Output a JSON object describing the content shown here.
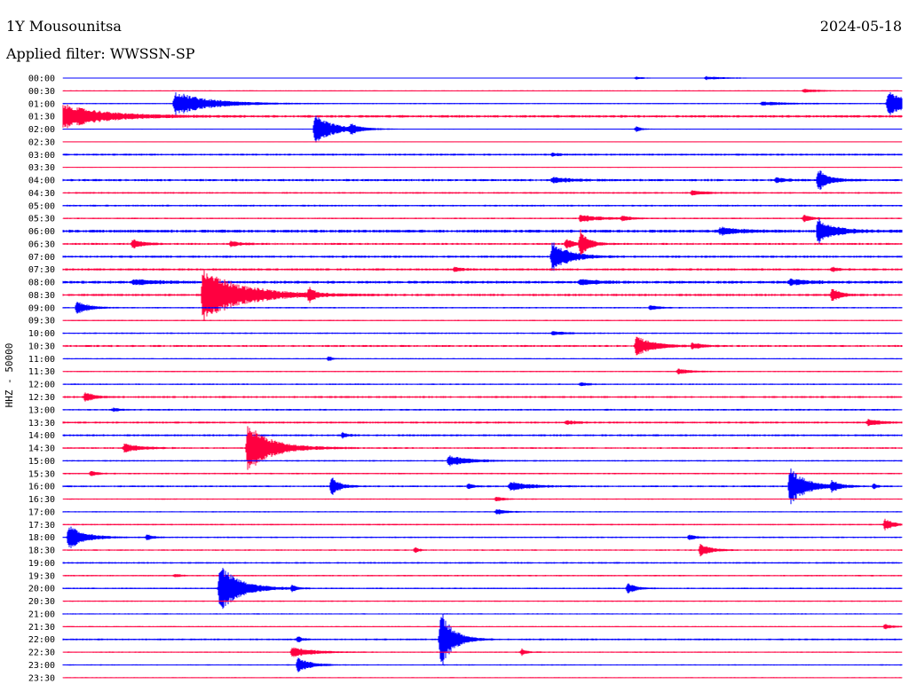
{
  "header": {
    "station": "1Y Mousounitsa",
    "date": "2024-05-18",
    "filter": "Applied filter: WWSSN-SP"
  },
  "chart_data": {
    "type": "line",
    "title": "1Y Mousounitsa",
    "ylabel": "HHZ - 50000",
    "colors": {
      "even": "#0000ff",
      "odd": "#ff0040"
    },
    "rows": [
      "00:00",
      "00:30",
      "01:00",
      "01:30",
      "02:00",
      "02:30",
      "03:00",
      "03:30",
      "04:00",
      "04:30",
      "05:00",
      "05:30",
      "06:00",
      "06:30",
      "07:00",
      "07:30",
      "08:00",
      "08:30",
      "09:00",
      "09:30",
      "10:00",
      "10:30",
      "11:00",
      "11:30",
      "12:00",
      "12:30",
      "13:00",
      "13:30",
      "14:00",
      "14:30",
      "15:00",
      "15:30",
      "16:00",
      "16:30",
      "17:00",
      "17:30",
      "18:00",
      "18:30",
      "19:00",
      "19:30",
      "20:00",
      "20:30",
      "21:00",
      "21:30",
      "22:00",
      "22:30",
      "23:00",
      "23:30"
    ],
    "noise": [
      0.3,
      0.4,
      0.5,
      1.0,
      0.4,
      0.3,
      0.8,
      0.3,
      0.9,
      0.7,
      0.7,
      0.6,
      1.2,
      0.8,
      0.9,
      0.9,
      1.1,
      0.9,
      0.6,
      0.5,
      0.6,
      0.8,
      0.5,
      0.5,
      0.6,
      0.8,
      0.7,
      0.8,
      0.8,
      0.7,
      0.6,
      0.6,
      0.7,
      0.5,
      0.5,
      0.6,
      0.6,
      0.6,
      0.7,
      0.6,
      0.6,
      0.5,
      0.5,
      0.5,
      0.7,
      0.5,
      0.5,
      0.4
    ],
    "events": [
      {
        "row": 0,
        "minute": 23,
        "amp": 2,
        "dur": 1.5
      },
      {
        "row": 0,
        "minute": 20.5,
        "amp": 1.5,
        "dur": 0.6
      },
      {
        "row": 1,
        "minute": 26.5,
        "amp": 2,
        "dur": 1.2
      },
      {
        "row": 2,
        "minute": 4,
        "amp": 14,
        "dur": 2.5
      },
      {
        "row": 2,
        "minute": 29.5,
        "amp": 14,
        "dur": 1.5
      },
      {
        "row": 2,
        "minute": 25,
        "amp": 2,
        "dur": 2
      },
      {
        "row": 3,
        "minute": 0,
        "amp": 14,
        "dur": 3
      },
      {
        "row": 4,
        "minute": 9,
        "amp": 16,
        "dur": 1.5
      },
      {
        "row": 4,
        "minute": 10.3,
        "amp": 5,
        "dur": 0.6
      },
      {
        "row": 4,
        "minute": 20.5,
        "amp": 3,
        "dur": 0.4
      },
      {
        "row": 6,
        "minute": 17.5,
        "amp": 2,
        "dur": 0.5
      },
      {
        "row": 8,
        "minute": 17.5,
        "amp": 3,
        "dur": 1.5
      },
      {
        "row": 8,
        "minute": 25.5,
        "amp": 3,
        "dur": 0.6
      },
      {
        "row": 8,
        "minute": 27,
        "amp": 13,
        "dur": 0.8
      },
      {
        "row": 9,
        "minute": 22.5,
        "amp": 3,
        "dur": 0.8
      },
      {
        "row": 11,
        "minute": 18.5,
        "amp": 4,
        "dur": 1.5
      },
      {
        "row": 11,
        "minute": 20,
        "amp": 3,
        "dur": 0.6
      },
      {
        "row": 11,
        "minute": 26.5,
        "amp": 4,
        "dur": 0.6
      },
      {
        "row": 12,
        "minute": 23.5,
        "amp": 4,
        "dur": 1.5
      },
      {
        "row": 12,
        "minute": 27,
        "amp": 14,
        "dur": 1.2
      },
      {
        "row": 13,
        "minute": 2.5,
        "amp": 5,
        "dur": 0.8
      },
      {
        "row": 13,
        "minute": 6,
        "amp": 3,
        "dur": 0.8
      },
      {
        "row": 13,
        "minute": 18.5,
        "amp": 16,
        "dur": 0.6
      },
      {
        "row": 13,
        "minute": 18,
        "amp": 6,
        "dur": 0.6
      },
      {
        "row": 14,
        "minute": 17.5,
        "amp": 18,
        "dur": 1.2
      },
      {
        "row": 15,
        "minute": 14,
        "amp": 3,
        "dur": 0.4
      },
      {
        "row": 15,
        "minute": 27.5,
        "amp": 3,
        "dur": 0.4
      },
      {
        "row": 16,
        "minute": 2.5,
        "amp": 3,
        "dur": 2
      },
      {
        "row": 16,
        "minute": 18.5,
        "amp": 3,
        "dur": 1.2
      },
      {
        "row": 16,
        "minute": 26,
        "amp": 3,
        "dur": 1.5
      },
      {
        "row": 17,
        "minute": 5,
        "amp": 30,
        "dur": 3
      },
      {
        "row": 17,
        "minute": 8.8,
        "amp": 8,
        "dur": 0.4
      },
      {
        "row": 17,
        "minute": 27.5,
        "amp": 8,
        "dur": 0.6
      },
      {
        "row": 18,
        "minute": 0.5,
        "amp": 8,
        "dur": 0.8
      },
      {
        "row": 18,
        "minute": 21,
        "amp": 3,
        "dur": 0.6
      },
      {
        "row": 20,
        "minute": 17.5,
        "amp": 2,
        "dur": 1
      },
      {
        "row": 21,
        "minute": 20.5,
        "amp": 12,
        "dur": 1.2
      },
      {
        "row": 21,
        "minute": 22.5,
        "amp": 3,
        "dur": 0.8
      },
      {
        "row": 22,
        "minute": 9.5,
        "amp": 3,
        "dur": 0.3
      },
      {
        "row": 23,
        "minute": 22,
        "amp": 3,
        "dur": 1
      },
      {
        "row": 24,
        "minute": 18.5,
        "amp": 2,
        "dur": 0.6
      },
      {
        "row": 25,
        "minute": 0.8,
        "amp": 6,
        "dur": 0.6
      },
      {
        "row": 26,
        "minute": 1.8,
        "amp": 2,
        "dur": 0.5
      },
      {
        "row": 27,
        "minute": 18,
        "amp": 2,
        "dur": 0.8
      },
      {
        "row": 27,
        "minute": 28.8,
        "amp": 4,
        "dur": 0.8
      },
      {
        "row": 28,
        "minute": 10,
        "amp": 3,
        "dur": 0.4
      },
      {
        "row": 29,
        "minute": 2.2,
        "amp": 5,
        "dur": 1.2
      },
      {
        "row": 29,
        "minute": 6.6,
        "amp": 28,
        "dur": 1.8
      },
      {
        "row": 30,
        "minute": 13.8,
        "amp": 6,
        "dur": 1.5
      },
      {
        "row": 31,
        "minute": 1,
        "amp": 3,
        "dur": 0.5
      },
      {
        "row": 32,
        "minute": 9.6,
        "amp": 11,
        "dur": 0.6
      },
      {
        "row": 32,
        "minute": 14.5,
        "amp": 3,
        "dur": 0.4
      },
      {
        "row": 32,
        "minute": 16,
        "amp": 5,
        "dur": 1.5
      },
      {
        "row": 32,
        "minute": 26,
        "amp": 22,
        "dur": 1.2
      },
      {
        "row": 32,
        "minute": 27.5,
        "amp": 6,
        "dur": 0.6
      },
      {
        "row": 32,
        "minute": 29,
        "amp": 3,
        "dur": 0.3
      },
      {
        "row": 33,
        "minute": 15.5,
        "amp": 3,
        "dur": 0.5
      },
      {
        "row": 34,
        "minute": 15.5,
        "amp": 3,
        "dur": 0.8
      },
      {
        "row": 35,
        "minute": 29.4,
        "amp": 7,
        "dur": 0.6
      },
      {
        "row": 36,
        "minute": 0.2,
        "amp": 14,
        "dur": 1.2
      },
      {
        "row": 36,
        "minute": 3,
        "amp": 3,
        "dur": 0.5
      },
      {
        "row": 36,
        "minute": 22.4,
        "amp": 3,
        "dur": 0.5
      },
      {
        "row": 37,
        "minute": 12.6,
        "amp": 3,
        "dur": 0.3
      },
      {
        "row": 37,
        "minute": 22.8,
        "amp": 7,
        "dur": 0.8
      },
      {
        "row": 39,
        "minute": 4,
        "amp": 2,
        "dur": 0.4
      },
      {
        "row": 40,
        "minute": 5.6,
        "amp": 28,
        "dur": 1.5
      },
      {
        "row": 40,
        "minute": 8.2,
        "amp": 4,
        "dur": 0.3
      },
      {
        "row": 40,
        "minute": 20.2,
        "amp": 6,
        "dur": 0.6
      },
      {
        "row": 43,
        "minute": 29.4,
        "amp": 3,
        "dur": 0.5
      },
      {
        "row": 44,
        "minute": 8.4,
        "amp": 4,
        "dur": 0.3
      },
      {
        "row": 44,
        "minute": 13.5,
        "amp": 36,
        "dur": 0.9
      },
      {
        "row": 45,
        "minute": 8.2,
        "amp": 6,
        "dur": 1.5
      },
      {
        "row": 45,
        "minute": 16.4,
        "amp": 4,
        "dur": 0.4
      },
      {
        "row": 46,
        "minute": 8.4,
        "amp": 8,
        "dur": 1
      }
    ]
  }
}
